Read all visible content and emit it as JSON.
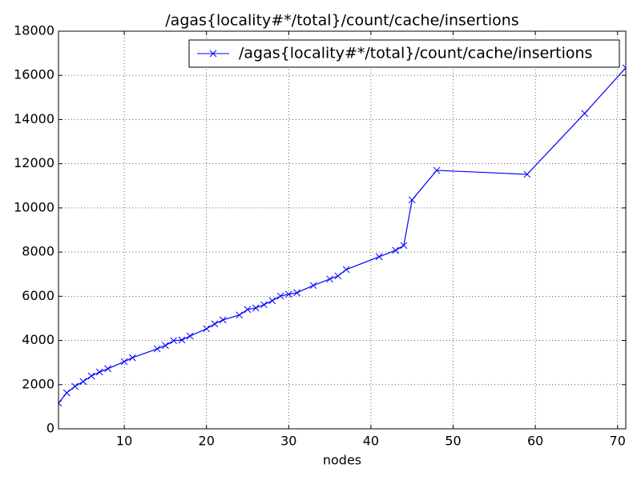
{
  "chart_data": {
    "type": "line",
    "title": "/agas{locality#*/total}/count/cache/insertions",
    "xlabel": "nodes",
    "x": [
      2,
      3,
      4,
      5,
      6,
      7,
      8,
      10,
      11,
      14,
      15,
      16,
      17,
      18,
      20,
      21,
      22,
      24,
      25,
      26,
      27,
      28,
      29,
      30,
      31,
      33,
      35,
      36,
      37,
      41,
      43,
      44,
      45,
      48,
      59,
      66,
      71
    ],
    "series": [
      {
        "name": "/agas{locality#*/total}/count/cache/insertions",
        "color": "#0000ff",
        "values": [
          1160,
          1630,
          1920,
          2140,
          2390,
          2570,
          2720,
          3040,
          3220,
          3620,
          3770,
          3990,
          4020,
          4200,
          4530,
          4750,
          4930,
          5150,
          5400,
          5470,
          5620,
          5800,
          6010,
          6090,
          6160,
          6490,
          6780,
          6920,
          7210,
          7790,
          8080,
          8300,
          10360,
          11700,
          11520,
          14280,
          16340
        ]
      }
    ],
    "xlim": [
      2,
      71
    ],
    "xticks": [
      10,
      20,
      30,
      40,
      50,
      60,
      70
    ],
    "ylim": [
      0,
      18000
    ],
    "yticks": [
      0,
      2000,
      4000,
      6000,
      8000,
      10000,
      12000,
      14000,
      16000,
      18000
    ],
    "grid": true,
    "legend": "upper right"
  }
}
